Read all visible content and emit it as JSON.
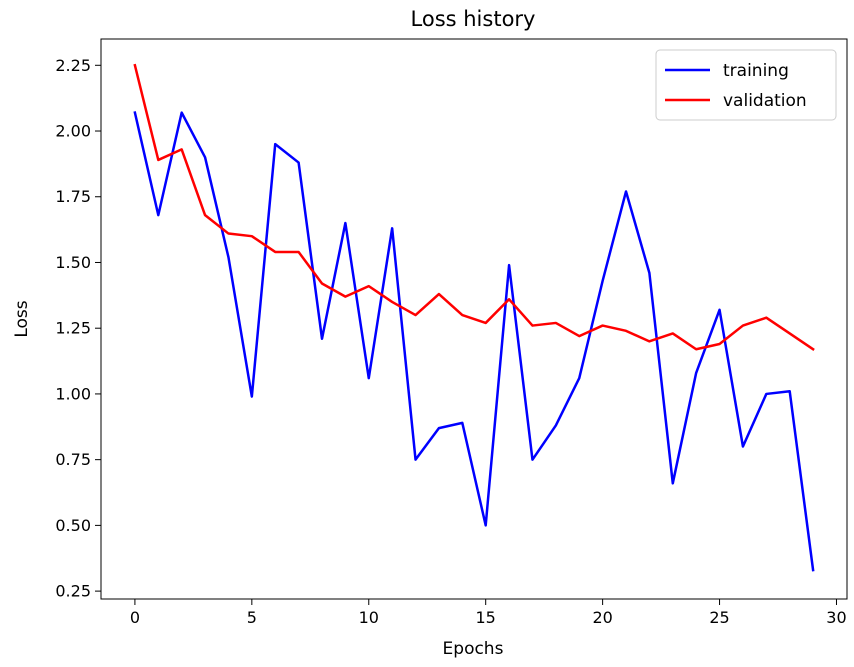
{
  "chart_data": {
    "type": "line",
    "title": "Loss history",
    "xlabel": "Epochs",
    "ylabel": "Loss",
    "xlim": [
      -1.45,
      30.45
    ],
    "ylim": [
      0.22,
      2.35
    ],
    "xticks": [
      0,
      5,
      10,
      15,
      20,
      25,
      30
    ],
    "xtick_labels": [
      "0",
      "5",
      "10",
      "15",
      "20",
      "25",
      "30"
    ],
    "yticks": [
      0.25,
      0.5,
      0.75,
      1.0,
      1.25,
      1.5,
      1.75,
      2.0,
      2.25
    ],
    "ytick_labels": [
      "0.25",
      "0.50",
      "0.75",
      "1.00",
      "1.25",
      "1.50",
      "1.75",
      "2.00",
      "2.25"
    ],
    "grid": false,
    "legend_position": "top-right",
    "x": [
      0,
      1,
      2,
      3,
      4,
      5,
      6,
      7,
      8,
      9,
      10,
      11,
      12,
      13,
      14,
      15,
      16,
      17,
      18,
      19,
      20,
      21,
      22,
      23,
      24,
      25,
      26,
      27,
      28,
      29
    ],
    "series": [
      {
        "name": "training",
        "color": "#0000ff",
        "values": [
          2.07,
          1.68,
          2.07,
          1.9,
          1.52,
          0.99,
          1.95,
          1.88,
          1.21,
          1.65,
          1.06,
          1.63,
          0.75,
          0.87,
          0.89,
          0.5,
          1.49,
          0.75,
          0.88,
          1.06,
          1.43,
          1.77,
          1.46,
          0.66,
          1.08,
          1.32,
          0.8,
          1.0,
          1.01,
          0.33
        ]
      },
      {
        "name": "validation",
        "color": "#ff0000",
        "values": [
          2.25,
          1.89,
          1.93,
          1.68,
          1.61,
          1.6,
          1.54,
          1.54,
          1.42,
          1.37,
          1.41,
          1.35,
          1.3,
          1.38,
          1.3,
          1.27,
          1.36,
          1.26,
          1.27,
          1.22,
          1.26,
          1.24,
          1.2,
          1.23,
          1.17,
          1.19,
          1.26,
          1.29,
          1.23,
          1.17
        ]
      }
    ]
  }
}
